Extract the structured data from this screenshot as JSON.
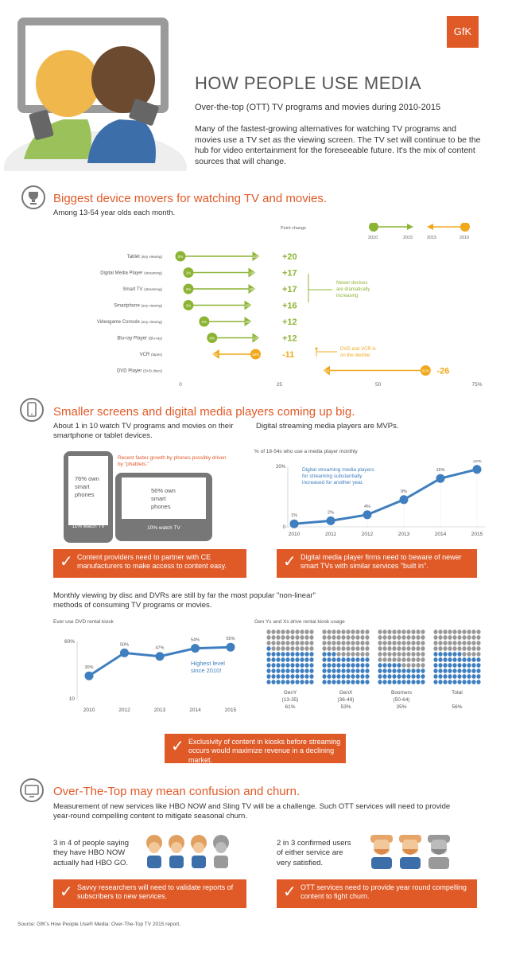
{
  "header": {
    "title": "HOW PEOPLE USE MEDIA",
    "subtitle": "Over-the-top (OTT) TV programs and movies during 2010-2015",
    "intro": "Many of the fastest-growing alternatives for watching TV programs and movies use a TV set as the viewing screen.  The TV set will continue to be the hub for video entertainment for the foreseeable future.  It's the mix of content sources that will change.",
    "logo": "GfK"
  },
  "colors": {
    "orange": "#e05a28",
    "green": "#8cb434",
    "yellow": "#f0a81c",
    "blue": "#3f7fbf",
    "gray": "#777777"
  },
  "section1": {
    "icon": "trophy-icon",
    "title": "Biggest device movers for watching TV and movies.",
    "subtitle": "Among 13-54 year olds each month.",
    "point_change_label": "Point change",
    "legend": {
      "green_start": "2010",
      "green_end": "2015",
      "yellow_start": "2015",
      "yellow_end": "2010"
    },
    "green_note": "Newer devices are dramatically increasing",
    "yellow_note": "DVD and VCR is on the decline"
  },
  "section2": {
    "icon": "tablet-icon",
    "title": "Smaller screens and digital media players coming up big.",
    "left_text": "About 1 in 10 watch TV programs and movies on their smartphone or tablet devices.",
    "phablet_note": "Recent faster growth by phones possibly driven by \"phablets.\"",
    "phone_stat": "76% own smart phones",
    "phone_label": "11% watch TV",
    "tablet_stat": "56% own smart phones",
    "tablet_label": "10% watch TV",
    "right_text": "Digital streaming media players are MVPs.",
    "chart_caption": "% of 18-54s who use a media player monthly",
    "chart_note": "Digital streaming media players for streaming substantially increased for another year.",
    "callout_left": "Content providers need to partner with CE manufacturers to make access to content easy.",
    "callout_right": "Digital media player firms need to beware of newer smart TVs with similar services \"built in\"."
  },
  "section3": {
    "text": "Monthly viewing by disc and DVRs are still by far the most popular \"non-linear\" methods of consuming TV programs or movies.",
    "left_caption": "Ever use DVD rental kiosk",
    "kiosk_note": "Highest level since 2010!",
    "right_caption": "Gen Ys and Xs drive rental kiosk usage",
    "callout": "Exclusivity of content in kiosks before streaming occurs would maximize revenue in a declining market."
  },
  "section4": {
    "icon": "tv-icon",
    "title": "Over-The-Top may mean confusion and churn.",
    "text": "Measurement of new services like HBO NOW and Sling TV will be a challenge.  Such OTT services will need to provide year-round compelling content to mitigate seasonal churn.",
    "left_stat": "3 in 4 of people saying they have HBO NOW actually had HBO GO.",
    "right_stat": "2 in 3 confirmed users of either service are very satisfied.",
    "callout_left": "Savvy researchers will need to validate reports of subscribers to new services.",
    "callout_right": "OTT services need to provide year round compelling content to fight churn."
  },
  "footer": {
    "source": "Source:  GfK's How People Use® Media: Over-The-Top TV 2015 report."
  },
  "chart_data": [
    {
      "type": "bar",
      "title": "Biggest device movers for watching TV and movies.",
      "axis_ticks": [
        "0",
        "25",
        "50",
        "75%"
      ],
      "xlim": [
        0,
        75
      ],
      "rows": [
        {
          "label": "Tablet",
          "qual": "(any viewing)",
          "start": 0,
          "end": 20,
          "change": "+20",
          "dir": "up"
        },
        {
          "label": "Digital Media Player",
          "qual": "(streaming)",
          "start": 2,
          "end": 19,
          "change": "+17",
          "dir": "up"
        },
        {
          "label": "Smart TV",
          "qual": "(streaming)",
          "start": 2,
          "end": 19,
          "change": "+17",
          "dir": "up"
        },
        {
          "label": "Smartphone",
          "qual": "(any viewing)",
          "start": 2,
          "end": 18,
          "change": "+16",
          "dir": "up"
        },
        {
          "label": "Videogame Console",
          "qual": "(any viewing)",
          "start": 6,
          "end": 18,
          "change": "+12",
          "dir": "up"
        },
        {
          "label": "Blu-ray Player",
          "qual": "(Blu-ray)",
          "start": 8,
          "end": 20,
          "change": "+12",
          "dir": "up"
        },
        {
          "label": "VCR",
          "qual": "(tapes)",
          "start": 19,
          "end": 8,
          "change": "-11",
          "dir": "down"
        },
        {
          "label": "DVD Player",
          "qual": "(DVD discs)",
          "start": 62,
          "end": 36,
          "change": "-26",
          "dir": "down"
        }
      ]
    },
    {
      "type": "line",
      "x": [
        "2010",
        "2011",
        "2012",
        "2013",
        "2014",
        "2015"
      ],
      "series": [
        {
          "values": [
            1,
            2,
            4,
            9,
            16,
            19
          ]
        }
      ],
      "value_labels": [
        "1%",
        "2%",
        "4%",
        "9%",
        "16%",
        "19%"
      ],
      "y_ticks": [
        "20%",
        "0"
      ],
      "ylim": [
        0,
        20
      ]
    },
    {
      "type": "line",
      "x": [
        "2010",
        "2012",
        "2013",
        "2014",
        "2015"
      ],
      "series": [
        {
          "values": [
            30,
            50,
            47,
            54,
            55
          ]
        }
      ],
      "value_labels": [
        "30%",
        "50%",
        "47%",
        "54%",
        "55%"
      ],
      "y_ticks": [
        "60%",
        "10"
      ],
      "ylim": [
        10,
        60
      ]
    },
    {
      "type": "table",
      "groups": [
        {
          "name": "GenY",
          "range": "(13-35)",
          "value": "61%",
          "pct": 61
        },
        {
          "name": "GenX",
          "range": "(36-49)",
          "value": "53%",
          "pct": 53
        },
        {
          "name": "Boomers",
          "range": "(50-64)",
          "value": "35%",
          "pct": 35
        },
        {
          "name": "Total",
          "range": "",
          "value": "56%",
          "pct": 56
        }
      ]
    }
  ]
}
